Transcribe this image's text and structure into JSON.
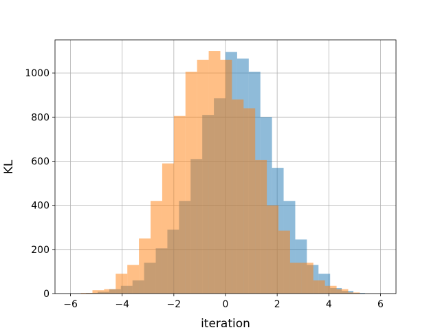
{
  "chart_data": {
    "type": "bar",
    "title": "",
    "xlabel": "iteration",
    "ylabel": "KL",
    "xlim": [
      -6.6,
      6.6
    ],
    "ylim": [
      0,
      1150
    ],
    "xticks": [
      -6,
      -4,
      -2,
      0,
      2,
      4,
      6
    ],
    "yticks": [
      0,
      200,
      400,
      600,
      800,
      1000
    ],
    "grid": true,
    "bin_width": 0.45,
    "series": [
      {
        "color": "#1f77b4",
        "opacity": 0.5,
        "bins": [
          {
            "x0": -5.4,
            "value": 3
          },
          {
            "x0": -4.95,
            "value": 8
          },
          {
            "x0": -4.5,
            "value": 20
          },
          {
            "x0": -4.05,
            "value": 35
          },
          {
            "x0": -3.6,
            "value": 60
          },
          {
            "x0": -3.15,
            "value": 140
          },
          {
            "x0": -2.7,
            "value": 205
          },
          {
            "x0": -2.25,
            "value": 290
          },
          {
            "x0": -1.8,
            "value": 420
          },
          {
            "x0": -1.35,
            "value": 610
          },
          {
            "x0": -0.9,
            "value": 810
          },
          {
            "x0": -0.45,
            "value": 885
          },
          {
            "x0": 0.0,
            "value": 1095
          },
          {
            "x0": 0.45,
            "value": 1065
          },
          {
            "x0": 0.9,
            "value": 1005
          },
          {
            "x0": 1.35,
            "value": 800
          },
          {
            "x0": 1.8,
            "value": 570
          },
          {
            "x0": 2.25,
            "value": 420
          },
          {
            "x0": 2.7,
            "value": 245
          },
          {
            "x0": 3.15,
            "value": 130
          },
          {
            "x0": 3.6,
            "value": 90
          },
          {
            "x0": 4.05,
            "value": 25
          },
          {
            "x0": 4.5,
            "value": 12
          },
          {
            "x0": 4.95,
            "value": 3
          }
        ]
      },
      {
        "color": "#ff7f0e",
        "opacity": 0.5,
        "bins": [
          {
            "x0": -5.6,
            "value": 3
          },
          {
            "x0": -5.15,
            "value": 15
          },
          {
            "x0": -4.7,
            "value": 20
          },
          {
            "x0": -4.25,
            "value": 90
          },
          {
            "x0": -3.8,
            "value": 130
          },
          {
            "x0": -3.35,
            "value": 250
          },
          {
            "x0": -2.9,
            "value": 420
          },
          {
            "x0": -2.45,
            "value": 590
          },
          {
            "x0": -2.0,
            "value": 805
          },
          {
            "x0": -1.55,
            "value": 1005
          },
          {
            "x0": -1.1,
            "value": 1060
          },
          {
            "x0": -0.65,
            "value": 1100
          },
          {
            "x0": -0.2,
            "value": 1060
          },
          {
            "x0": 0.25,
            "value": 880
          },
          {
            "x0": 0.7,
            "value": 840
          },
          {
            "x0": 1.15,
            "value": 605
          },
          {
            "x0": 1.6,
            "value": 400
          },
          {
            "x0": 2.05,
            "value": 285
          },
          {
            "x0": 2.5,
            "value": 140
          },
          {
            "x0": 2.95,
            "value": 140
          },
          {
            "x0": 3.4,
            "value": 60
          },
          {
            "x0": 3.85,
            "value": 35
          },
          {
            "x0": 4.3,
            "value": 20
          },
          {
            "x0": 4.75,
            "value": 5
          }
        ]
      }
    ]
  }
}
